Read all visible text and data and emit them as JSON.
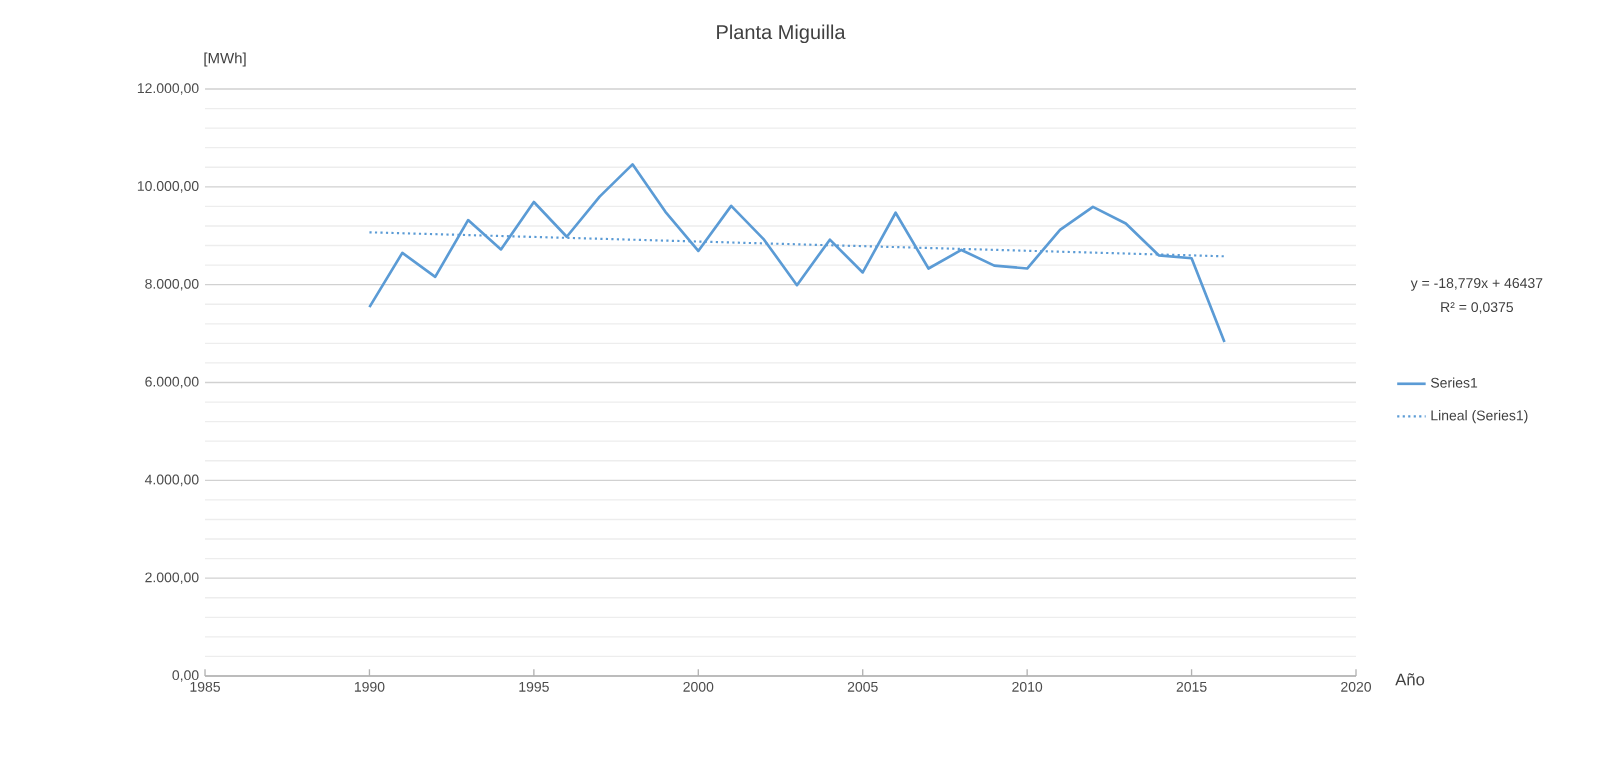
{
  "chart_data": {
    "type": "line",
    "title": "Planta Miguilla",
    "xlabel": "Año",
    "ylabel": "[MWh]",
    "x": [
      1990,
      1991,
      1992,
      1993,
      1994,
      1995,
      1996,
      1997,
      1998,
      1999,
      2000,
      2001,
      2002,
      2003,
      2004,
      2005,
      2006,
      2007,
      2008,
      2009,
      2010,
      2011,
      2012,
      2013,
      2014,
      2015,
      2016
    ],
    "series": [
      {
        "name": "Series1",
        "color": "#5b9bd5",
        "values": [
          7540,
          8650,
          8160,
          9320,
          8720,
          9690,
          8980,
          9800,
          10460,
          9490,
          8690,
          9610,
          8920,
          7990,
          8920,
          8250,
          9470,
          8330,
          8710,
          8390,
          8330,
          9120,
          9590,
          9250,
          8600,
          8540,
          6830
        ]
      },
      {
        "name": "Lineal (Series1)",
        "color": "#5b9bd5",
        "type": "line",
        "line_style": "dotted",
        "x": [
          1990,
          2016
        ],
        "values": [
          9070,
          8580
        ]
      }
    ],
    "xlim": [
      1985,
      2020
    ],
    "xticks": [
      1985,
      1990,
      1995,
      2000,
      2005,
      2010,
      2015,
      2020
    ],
    "ylim": [
      0,
      12000
    ],
    "yticks": [
      {
        "value": 0,
        "label": "0,00"
      },
      {
        "value": 2000,
        "label": "2.000,00"
      },
      {
        "value": 4000,
        "label": "4.000,00"
      },
      {
        "value": 6000,
        "label": "6.000,00"
      },
      {
        "value": 8000,
        "label": "8.000,00"
      },
      {
        "value": 10000,
        "label": "10.000,00"
      },
      {
        "value": 12000,
        "label": "12.000,00"
      }
    ],
    "annotations": [
      "y = -18,779x + 46437",
      "R² = 0,0375"
    ],
    "grid": "y",
    "legend": "right",
    "marker": "none",
    "line_style": "solid"
  }
}
